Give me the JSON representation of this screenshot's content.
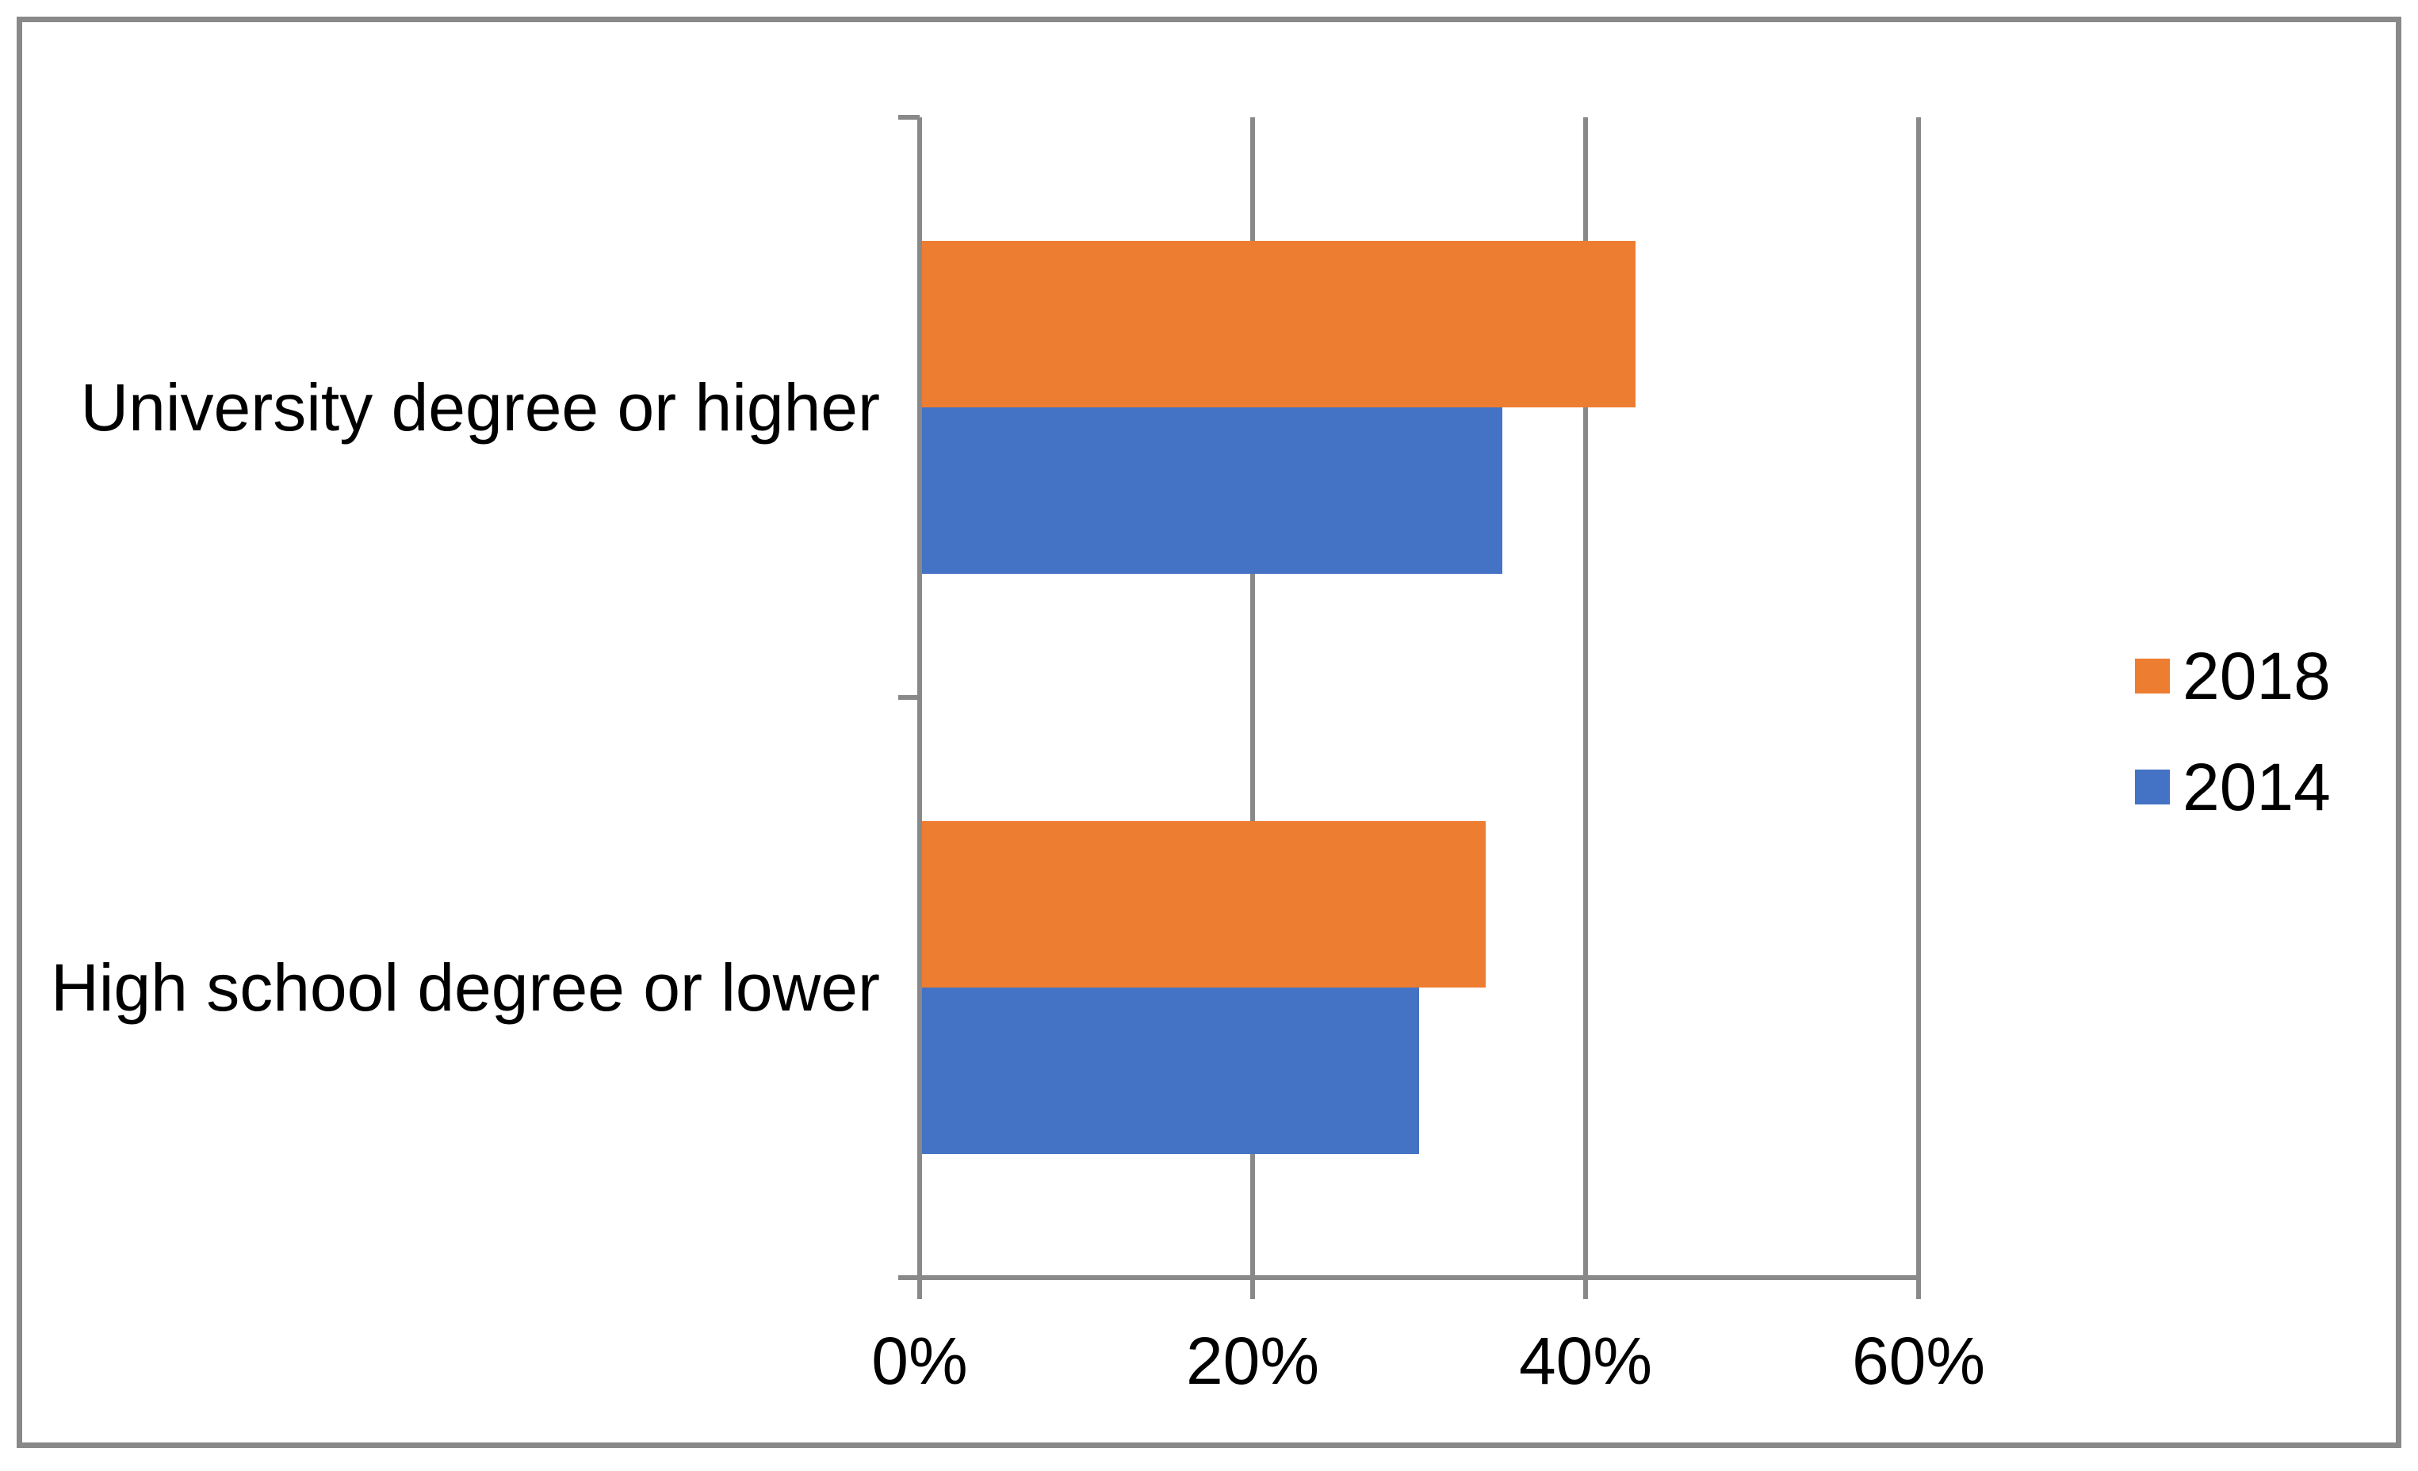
{
  "chart_data": {
    "type": "bar",
    "orientation": "horizontal",
    "title": "",
    "xlabel": "",
    "ylabel": "",
    "categories": [
      "University degree or higher",
      "High school degree or lower"
    ],
    "series": [
      {
        "name": "2018",
        "color": "#ED7D31",
        "values": [
          43,
          34
        ]
      },
      {
        "name": "2014",
        "color": "#4472C4",
        "values": [
          35,
          30
        ]
      }
    ],
    "x_axis": {
      "min": 0,
      "max": 60,
      "tick_step": 20,
      "tick_values": [
        0,
        20,
        40,
        60
      ],
      "tick_labels": [
        "0%",
        "20%",
        "40%",
        "60%"
      ],
      "format": "percent"
    },
    "grid": true,
    "legend_position": "right",
    "legend_labels": [
      "2018",
      "2014"
    ],
    "colors": {
      "axis_and_grid": "#898989",
      "frame_border": "#898989",
      "background": "#ffffff",
      "text": "#000000"
    }
  }
}
